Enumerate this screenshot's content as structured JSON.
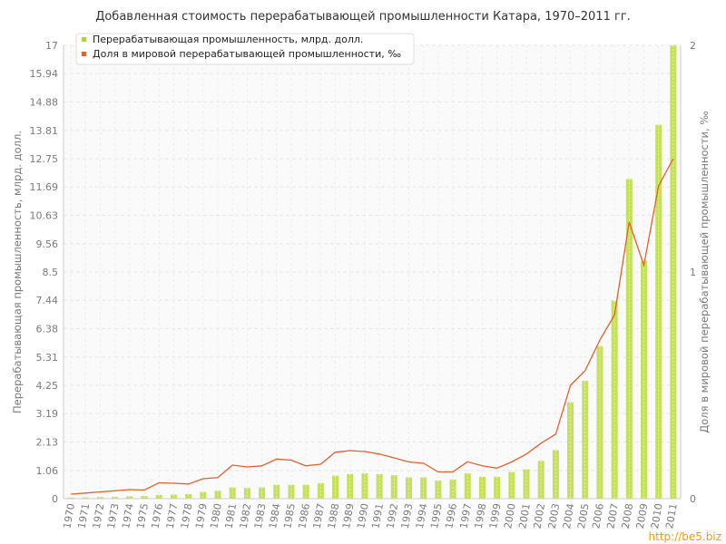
{
  "chart_data": {
    "type": "bar",
    "title": "Добавленная стоимость перерабатывающей промышленности Катара, 1970–2011 гг.",
    "ylabel_left": "Перерабатывающая промышленность, млрд. долл.",
    "ylabel_right": "Доля в мировой перерабатывающей промышленности, ‰",
    "ylim_left": [
      0,
      17
    ],
    "ylim_right": [
      0,
      2
    ],
    "y_ticks_left": [
      "0",
      "1.06",
      "2.13",
      "3.19",
      "4.25",
      "5.31",
      "6.38",
      "7.44",
      "8.5",
      "9.56",
      "10.63",
      "11.69",
      "12.75",
      "13.81",
      "14.88",
      "15.94",
      "17"
    ],
    "y_ticks_right": [
      "0",
      "1",
      "2"
    ],
    "legend_position": "top-left",
    "grid": true,
    "categories": [
      "1970",
      "1971",
      "1972",
      "1973",
      "1974",
      "1975",
      "1976",
      "1977",
      "1978",
      "1979",
      "1980",
      "1981",
      "1982",
      "1983",
      "1984",
      "1985",
      "1986",
      "1987",
      "1988",
      "1989",
      "1990",
      "1991",
      "1992",
      "1993",
      "1994",
      "1995",
      "1996",
      "1997",
      "1998",
      "1999",
      "2000",
      "2001",
      "2002",
      "2003",
      "2004",
      "2005",
      "2006",
      "2007",
      "2008",
      "2009",
      "2010",
      "2011"
    ],
    "series": [
      {
        "name": "Перерабатывающая промышленность, млрд. долл.",
        "type": "bar",
        "axis": "left",
        "color": "#c5e05a",
        "values": [
          0.04,
          0.05,
          0.06,
          0.07,
          0.09,
          0.1,
          0.14,
          0.15,
          0.17,
          0.25,
          0.3,
          0.42,
          0.4,
          0.42,
          0.52,
          0.52,
          0.52,
          0.58,
          0.86,
          0.92,
          0.95,
          0.92,
          0.88,
          0.8,
          0.8,
          0.68,
          0.72,
          0.95,
          0.82,
          0.82,
          1.0,
          1.1,
          1.42,
          1.82,
          3.62,
          4.42,
          5.72,
          7.42,
          11.99,
          8.92,
          14.02,
          17.0
        ]
      },
      {
        "name": "Доля в мировой перерабатывающей промышленности, ‰",
        "type": "line",
        "axis": "right",
        "color": "#e06030",
        "values": [
          0.02,
          0.025,
          0.03,
          0.035,
          0.04,
          0.038,
          0.07,
          0.068,
          0.065,
          0.088,
          0.093,
          0.148,
          0.14,
          0.145,
          0.175,
          0.17,
          0.145,
          0.152,
          0.205,
          0.212,
          0.208,
          0.197,
          0.18,
          0.162,
          0.156,
          0.118,
          0.118,
          0.163,
          0.145,
          0.135,
          0.162,
          0.197,
          0.245,
          0.285,
          0.5,
          0.565,
          0.7,
          0.81,
          1.22,
          1.03,
          1.38,
          1.5
        ]
      }
    ]
  },
  "watermark": "http://be5.biz"
}
